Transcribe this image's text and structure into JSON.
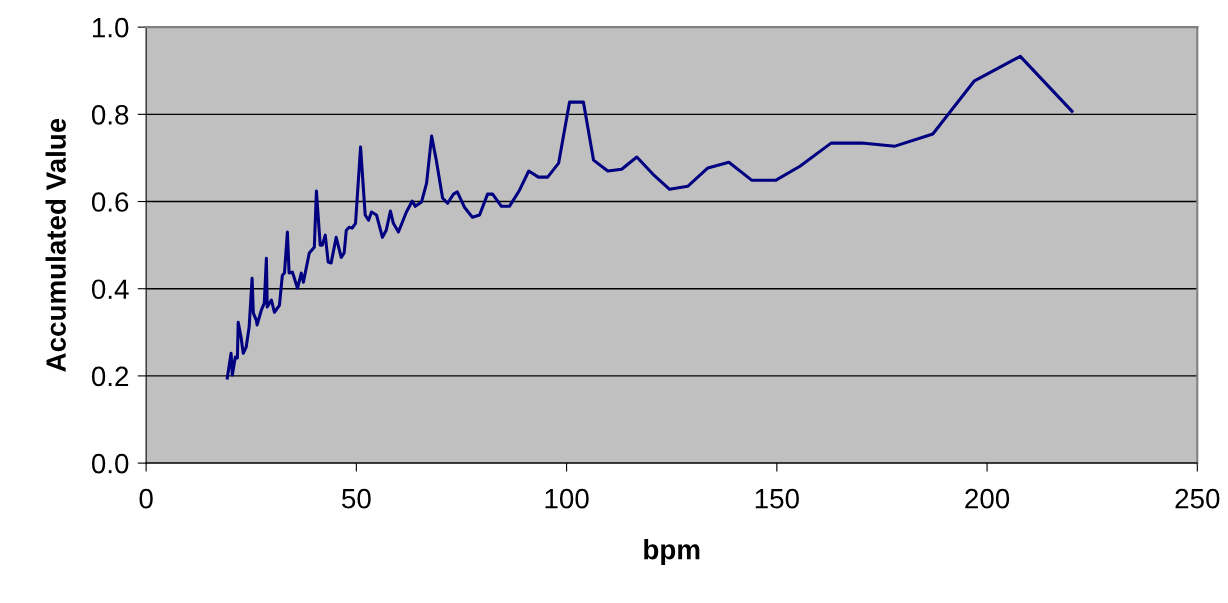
{
  "chart_data": {
    "type": "line",
    "xlabel": "bpm",
    "ylabel": "Accumulated Value",
    "xlim": [
      0,
      250
    ],
    "xticks": [
      0,
      50,
      100,
      150,
      200,
      250
    ],
    "ylim": [
      0,
      1.0
    ],
    "yticks": [
      {
        "value": 0,
        "label": "0.0"
      },
      {
        "value": 0.2,
        "label": "0.2"
      },
      {
        "value": 0.4,
        "label": "0.4"
      },
      {
        "value": 0.6,
        "label": "0.6"
      },
      {
        "value": 0.8,
        "label": "0.8"
      },
      {
        "value": 1.0,
        "label": "1.0"
      }
    ],
    "grid": "y",
    "marker": "none",
    "line_style": "solid",
    "series": [
      {
        "color": "#000080",
        "x": [
          19.3,
          20.2,
          20.5,
          21.2,
          21.7,
          21.9,
          22.6,
          23.1,
          23.8,
          24.5,
          25.2,
          25.5,
          26.2,
          26.4,
          27.4,
          28.1,
          28.6,
          28.8,
          29.8,
          30.5,
          31.7,
          32.4,
          32.9,
          33.6,
          34.0,
          34.8,
          36.0,
          36.9,
          37.4,
          38.8,
          40.0,
          40.5,
          41.4,
          41.9,
          42.6,
          43.3,
          44.0,
          45.2,
          46.4,
          47.1,
          47.6,
          48.3,
          49.0,
          49.8,
          51.0,
          52.1,
          52.9,
          53.6,
          54.8,
          56.2,
          57.1,
          58.1,
          58.8,
          60.0,
          61.9,
          63.3,
          64.0,
          65.5,
          66.7,
          67.9,
          69.0,
          70.5,
          71.7,
          73.1,
          74.0,
          75.7,
          77.6,
          79.3,
          81.2,
          82.4,
          84.5,
          86.4,
          88.8,
          91.0,
          93.3,
          95.5,
          98.1,
          100.7,
          104.0,
          106.4,
          109.8,
          113.1,
          116.7,
          120.5,
          124.5,
          128.8,
          133.6,
          138.6,
          144.0,
          149.8,
          155.5,
          162.9,
          170.2,
          178.1,
          187.1,
          196.9,
          207.9,
          220.2
        ],
        "values": [
          0.195,
          0.252,
          0.202,
          0.243,
          0.241,
          0.323,
          0.287,
          0.252,
          0.266,
          0.312,
          0.424,
          0.344,
          0.328,
          0.317,
          0.351,
          0.367,
          0.47,
          0.358,
          0.374,
          0.346,
          0.362,
          0.431,
          0.436,
          0.53,
          0.436,
          0.438,
          0.401,
          0.436,
          0.415,
          0.482,
          0.495,
          0.624,
          0.5,
          0.5,
          0.523,
          0.461,
          0.459,
          0.518,
          0.472,
          0.482,
          0.534,
          0.541,
          0.539,
          0.55,
          0.725,
          0.569,
          0.557,
          0.576,
          0.569,
          0.518,
          0.534,
          0.578,
          0.55,
          0.53,
          0.576,
          0.601,
          0.589,
          0.599,
          0.642,
          0.75,
          0.695,
          0.608,
          0.596,
          0.617,
          0.622,
          0.587,
          0.564,
          0.569,
          0.617,
          0.617,
          0.589,
          0.589,
          0.626,
          0.67,
          0.656,
          0.656,
          0.688,
          0.828,
          0.828,
          0.695,
          0.67,
          0.674,
          0.702,
          0.663,
          0.628,
          0.635,
          0.677,
          0.69,
          0.649,
          0.649,
          0.681,
          0.734,
          0.734,
          0.727,
          0.755,
          0.876,
          0.933,
          0.807
        ]
      }
    ]
  }
}
